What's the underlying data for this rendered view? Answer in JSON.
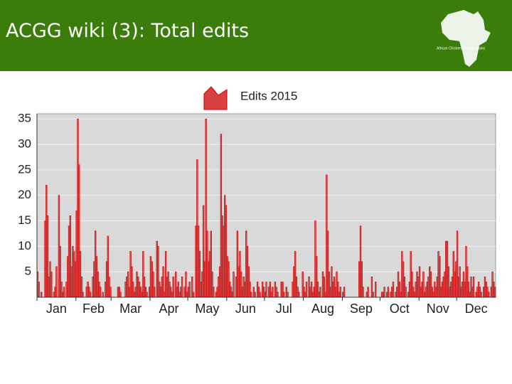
{
  "header": {
    "title": "ACGG wiki (3): Total edits",
    "logo_text": "African Chicken Genetic Gains"
  },
  "chart_data": {
    "type": "bar",
    "xlim": [
      0,
      365
    ],
    "xticks": [
      {
        "value": 0,
        "label": "Jan"
      },
      {
        "value": 31,
        "label": "Feb"
      },
      {
        "value": 59,
        "label": "Mar"
      },
      {
        "value": 90,
        "label": "Apr"
      },
      {
        "value": 120,
        "label": "May"
      },
      {
        "value": 151,
        "label": "Jun"
      },
      {
        "value": 181,
        "label": "Jul"
      },
      {
        "value": 212,
        "label": "Aug"
      },
      {
        "value": 243,
        "label": "Sep"
      },
      {
        "value": 273,
        "label": "Oct"
      },
      {
        "value": 304,
        "label": "Nov"
      },
      {
        "value": 334,
        "label": "Dec"
      }
    ],
    "ylim": [
      0,
      36
    ],
    "yticks": [
      5,
      10,
      15,
      20,
      25,
      30,
      35
    ],
    "grid": true,
    "legend": "top",
    "series": [
      {
        "name": "Edits 2015",
        "color": "#cc0000",
        "values": [
          5,
          3,
          0,
          1,
          0,
          0,
          15,
          22,
          16,
          4,
          7,
          5,
          0,
          1,
          2,
          6,
          0,
          20,
          10,
          3,
          1,
          2,
          0,
          3,
          8,
          14,
          16,
          6,
          10,
          9,
          7,
          17,
          35,
          26,
          9,
          4,
          1,
          0,
          0,
          2,
          3,
          2,
          1,
          0,
          4,
          7,
          13,
          8,
          5,
          3,
          2,
          0,
          1,
          0,
          3,
          7,
          12,
          4,
          2,
          0,
          0,
          0,
          0,
          0,
          2,
          2,
          1,
          0,
          0,
          0,
          3,
          4,
          5,
          2,
          9,
          6,
          3,
          1,
          2,
          5,
          4,
          3,
          2,
          1,
          9,
          4,
          2,
          1,
          0,
          2,
          8,
          7,
          5,
          2,
          0,
          11,
          10,
          3,
          2,
          4,
          6,
          1,
          9,
          4,
          5,
          3,
          2,
          1,
          4,
          0,
          5,
          2,
          3,
          1,
          2,
          4,
          0,
          2,
          5,
          1,
          2,
          3,
          0,
          4,
          1,
          0,
          14,
          27,
          14,
          9,
          3,
          5,
          18,
          7,
          35,
          13,
          7,
          9,
          13,
          5,
          2,
          0,
          1,
          2,
          4,
          6,
          32,
          16,
          14,
          20,
          18,
          8,
          7,
          3,
          2,
          1,
          5,
          0,
          4,
          13,
          6,
          9,
          5,
          2,
          4,
          3,
          13,
          10,
          6,
          3,
          1,
          0,
          2,
          1,
          0,
          3,
          2,
          1,
          0,
          3,
          2,
          1,
          3,
          0,
          2,
          3,
          1,
          2,
          0,
          3,
          2,
          1,
          0,
          0,
          3,
          3,
          1,
          0,
          2,
          1,
          0,
          0,
          0,
          3,
          6,
          9,
          4,
          2,
          1,
          0,
          0,
          5,
          2,
          1,
          3,
          0,
          4,
          2,
          3,
          1,
          2,
          15,
          8,
          3,
          1,
          2,
          0,
          5,
          4,
          1,
          24,
          13,
          5,
          2,
          6,
          3,
          4,
          2,
          5,
          3,
          1,
          2,
          0,
          1,
          2,
          0,
          0,
          0,
          0,
          0,
          0,
          0,
          0,
          0,
          0,
          0,
          7,
          14,
          7,
          2,
          0,
          0,
          1,
          2,
          0,
          0,
          4,
          1,
          0,
          3,
          0,
          0,
          0,
          0,
          1,
          1,
          2,
          0,
          1,
          2,
          0,
          1,
          2,
          3,
          0,
          1,
          2,
          5,
          3,
          1,
          9,
          7,
          4,
          2,
          0,
          1,
          3,
          9,
          5,
          2,
          1,
          3,
          5,
          4,
          6,
          2,
          3,
          5,
          1,
          2,
          3,
          4,
          6,
          5,
          2,
          1,
          3,
          2,
          4,
          9,
          8,
          2,
          3,
          4,
          5,
          11,
          11,
          6,
          2,
          3,
          4,
          9,
          5,
          7,
          13,
          4,
          6,
          2,
          3,
          5,
          3,
          10,
          6,
          3,
          1,
          4,
          2,
          4,
          0,
          1,
          2,
          3,
          2,
          1,
          0,
          2,
          4,
          3,
          2,
          1,
          0,
          2,
          5,
          3,
          2
        ]
      }
    ]
  }
}
